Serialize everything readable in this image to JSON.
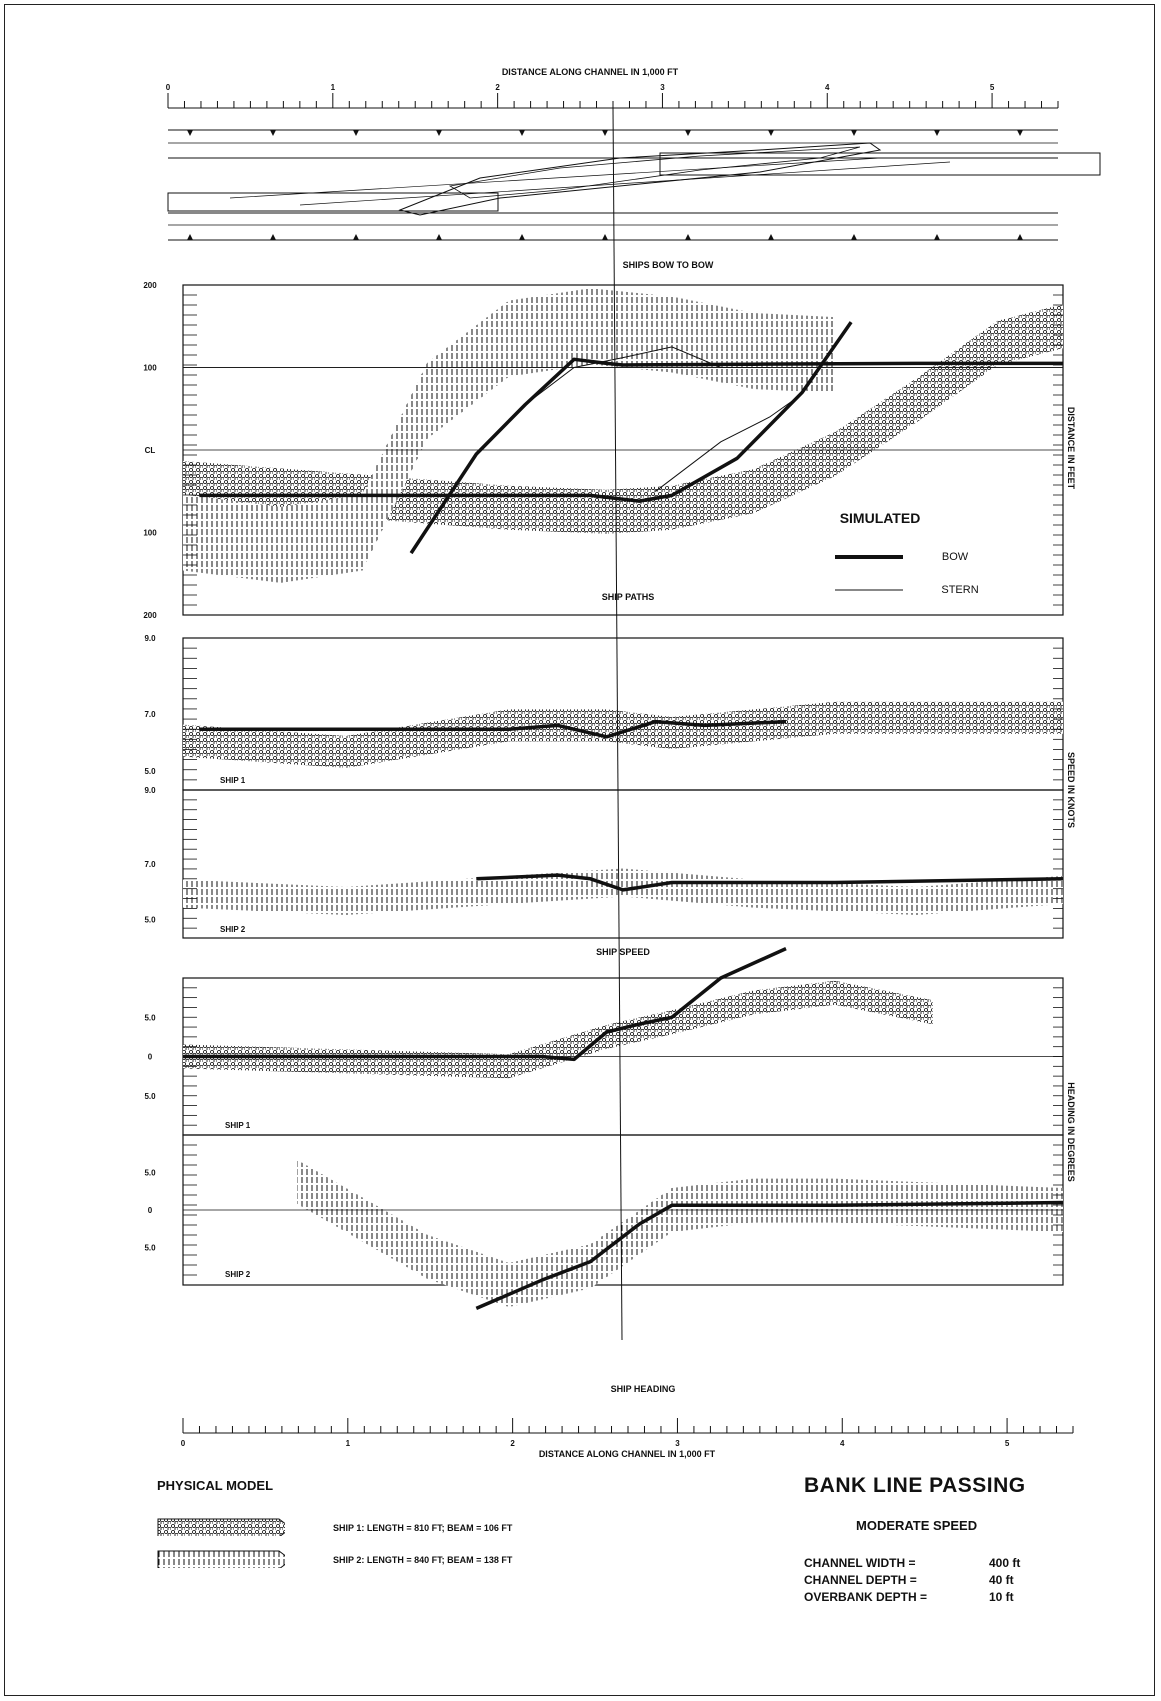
{
  "chart_data": [
    {
      "type": "line",
      "panel": "channel plan view",
      "title": "",
      "xlabel": "DISTANCE ALONG CHANNEL IN 1,000 FT",
      "x_ticks": [
        "0",
        "1",
        "2",
        "3",
        "4",
        "5"
      ],
      "xlim": [
        0,
        5.4
      ],
      "subtitle": "SHIPS BOW TO BOW",
      "bow_to_bow_x": 2.7
    },
    {
      "type": "line",
      "panel": "ship paths",
      "caption": "SHIP PATHS",
      "ylabel": "DISTANCE IN FEET",
      "y_ticks": [
        "200",
        "100",
        "CL",
        "100",
        "200"
      ],
      "ylim": [
        -200,
        200
      ],
      "xlim": [
        0,
        5.4
      ],
      "legend": {
        "title": "SIMULATED",
        "bow": "BOW",
        "stern": "STERN",
        "placement": "bottom-right"
      },
      "series": [
        {
          "name": "BOW",
          "role": "ship 1 simulated",
          "x": [
            0.1,
            1.0,
            2.0,
            2.5,
            2.8,
            3.0,
            3.4,
            3.8,
            4.1
          ],
          "y": [
            -55,
            -55,
            -55,
            -55,
            -62,
            -55,
            -10,
            70,
            155
          ]
        },
        {
          "name": "BOW",
          "role": "ship 2 simulated",
          "x": [
            1.4,
            1.8,
            2.1,
            2.4,
            2.6,
            2.7,
            3.5,
            4.5,
            5.4
          ],
          "y": [
            -125,
            -5,
            55,
            110,
            105,
            103,
            104,
            105,
            105
          ]
        },
        {
          "name": "STERN",
          "role": "ship 2 simulated stern",
          "x": [
            2.1,
            2.4,
            2.7,
            3.0,
            3.3,
            3.6
          ],
          "y": [
            55,
            100,
            112,
            125,
            100,
            100
          ]
        },
        {
          "name": "STERN",
          "role": "ship 1 simulated stern",
          "x": [
            2.9,
            3.3,
            3.6,
            3.8
          ],
          "y": [
            -50,
            10,
            40,
            68
          ]
        },
        {
          "name": "SHIP 1",
          "role": "physical model band center",
          "x": [
            0.0,
            1.0,
            2.0,
            2.6,
            3.0,
            3.5,
            4.0,
            4.5,
            5.0,
            5.4
          ],
          "y": [
            -40,
            -55,
            -70,
            -75,
            -70,
            -50,
            -5,
            60,
            130,
            150
          ]
        },
        {
          "name": "SHIP 2",
          "role": "physical model band center",
          "x": [
            0.0,
            0.6,
            1.1,
            1.5,
            2.0,
            2.5,
            3.0,
            3.5,
            4.0
          ],
          "y": [
            -100,
            -115,
            -100,
            60,
            135,
            150,
            140,
            120,
            115
          ]
        }
      ]
    },
    {
      "type": "line",
      "panel": "ship speed",
      "caption": "SHIP SPEED",
      "ylabel": "SPEED IN KNOTS",
      "subpanels": [
        {
          "label": "SHIP 1",
          "y_ticks": [
            "9.0",
            "7.0",
            "5.0"
          ],
          "ylim": [
            5,
            9
          ],
          "simulated": {
            "x": [
              0.1,
              2.0,
              2.3,
              2.6,
              2.9,
              3.2,
              3.7
            ],
            "y": [
              6.6,
              6.6,
              6.7,
              6.4,
              6.8,
              6.7,
              6.8
            ]
          },
          "physical_center": {
            "x": [
              0.0,
              1.0,
              2.0,
              2.6,
              3.0,
              4.0,
              5.4
            ],
            "y": [
              6.3,
              6.0,
              6.7,
              6.7,
              6.5,
              6.9,
              6.9
            ]
          }
        },
        {
          "label": "SHIP 2",
          "y_ticks": [
            "9.0",
            "7.0",
            "5.0"
          ],
          "ylim": [
            5,
            9
          ],
          "simulated": {
            "x": [
              1.8,
              2.3,
              2.5,
              2.7,
              3.0,
              4.0,
              5.4
            ],
            "y": [
              6.6,
              6.7,
              6.6,
              6.3,
              6.5,
              6.5,
              6.6
            ]
          },
          "physical_center": {
            "x": [
              0.0,
              1.0,
              2.0,
              2.7,
              3.5,
              4.5,
              5.4
            ],
            "y": [
              6.2,
              6.0,
              6.3,
              6.5,
              6.2,
              6.0,
              6.3
            ]
          }
        }
      ]
    },
    {
      "type": "line",
      "panel": "ship heading",
      "caption": "SHIP HEADING",
      "ylabel": "HEADING IN DEGREES",
      "xlabel": "DISTANCE ALONG CHANNEL IN 1,000 FT",
      "x_ticks": [
        "0",
        "1",
        "2",
        "3",
        "4",
        "5"
      ],
      "subpanels": [
        {
          "label": "SHIP 1",
          "y_ticks": [
            "5.0",
            "0",
            "5.0"
          ],
          "ylim": [
            -8,
            8
          ],
          "simulated": {
            "x": [
              0.0,
              2.2,
              2.4,
              2.6,
              2.8,
              3.0,
              3.3,
              3.7
            ],
            "y": [
              0,
              0,
              -0.3,
              2.5,
              3.3,
              4.0,
              8.0,
              11.0
            ]
          },
          "physical_center": {
            "x": [
              0.0,
              1.0,
              2.0,
              2.6,
              3.0,
              3.5,
              4.0,
              4.6
            ],
            "y": [
              0,
              -0.5,
              -1,
              2,
              3.5,
              5.5,
              6.5,
              4.5
            ]
          }
        },
        {
          "label": "SHIP 2",
          "y_ticks": [
            "5.0",
            "0",
            "5.0"
          ],
          "ylim": [
            -8,
            8
          ],
          "simulated": {
            "x": [
              1.8,
              2.2,
              2.5,
              2.8,
              3.0,
              4.0,
              5.4
            ],
            "y": [
              -10.5,
              -7.5,
              -5.5,
              -1.5,
              0.5,
              0.5,
              0.8
            ]
          },
          "physical_center": {
            "x": [
              0.7,
              1.5,
              2.0,
              2.5,
              3.0,
              3.5,
              4.0,
              5.4
            ],
            "y": [
              3,
              -5,
              -8,
              -6,
              0,
              1,
              1,
              0
            ]
          }
        }
      ]
    }
  ],
  "legend": {
    "title": "PHYSICAL MODEL",
    "ship1": "SHIP 1: LENGTH = 810 FT; BEAM = 106 FT",
    "ship2": "SHIP 2: LENGTH = 840 FT; BEAM = 138 FT"
  },
  "info": {
    "title": "BANK LINE PASSING",
    "subtitle": "MODERATE SPEED",
    "params": [
      {
        "label": "CHANNEL WIDTH =",
        "value": "400 ft"
      },
      {
        "label": "CHANNEL DEPTH =",
        "value": "40 ft"
      },
      {
        "label": "OVERBANK DEPTH =",
        "value": "10 ft"
      }
    ]
  },
  "colors": {
    "ink": "#111111",
    "paper": "#ffffff"
  }
}
